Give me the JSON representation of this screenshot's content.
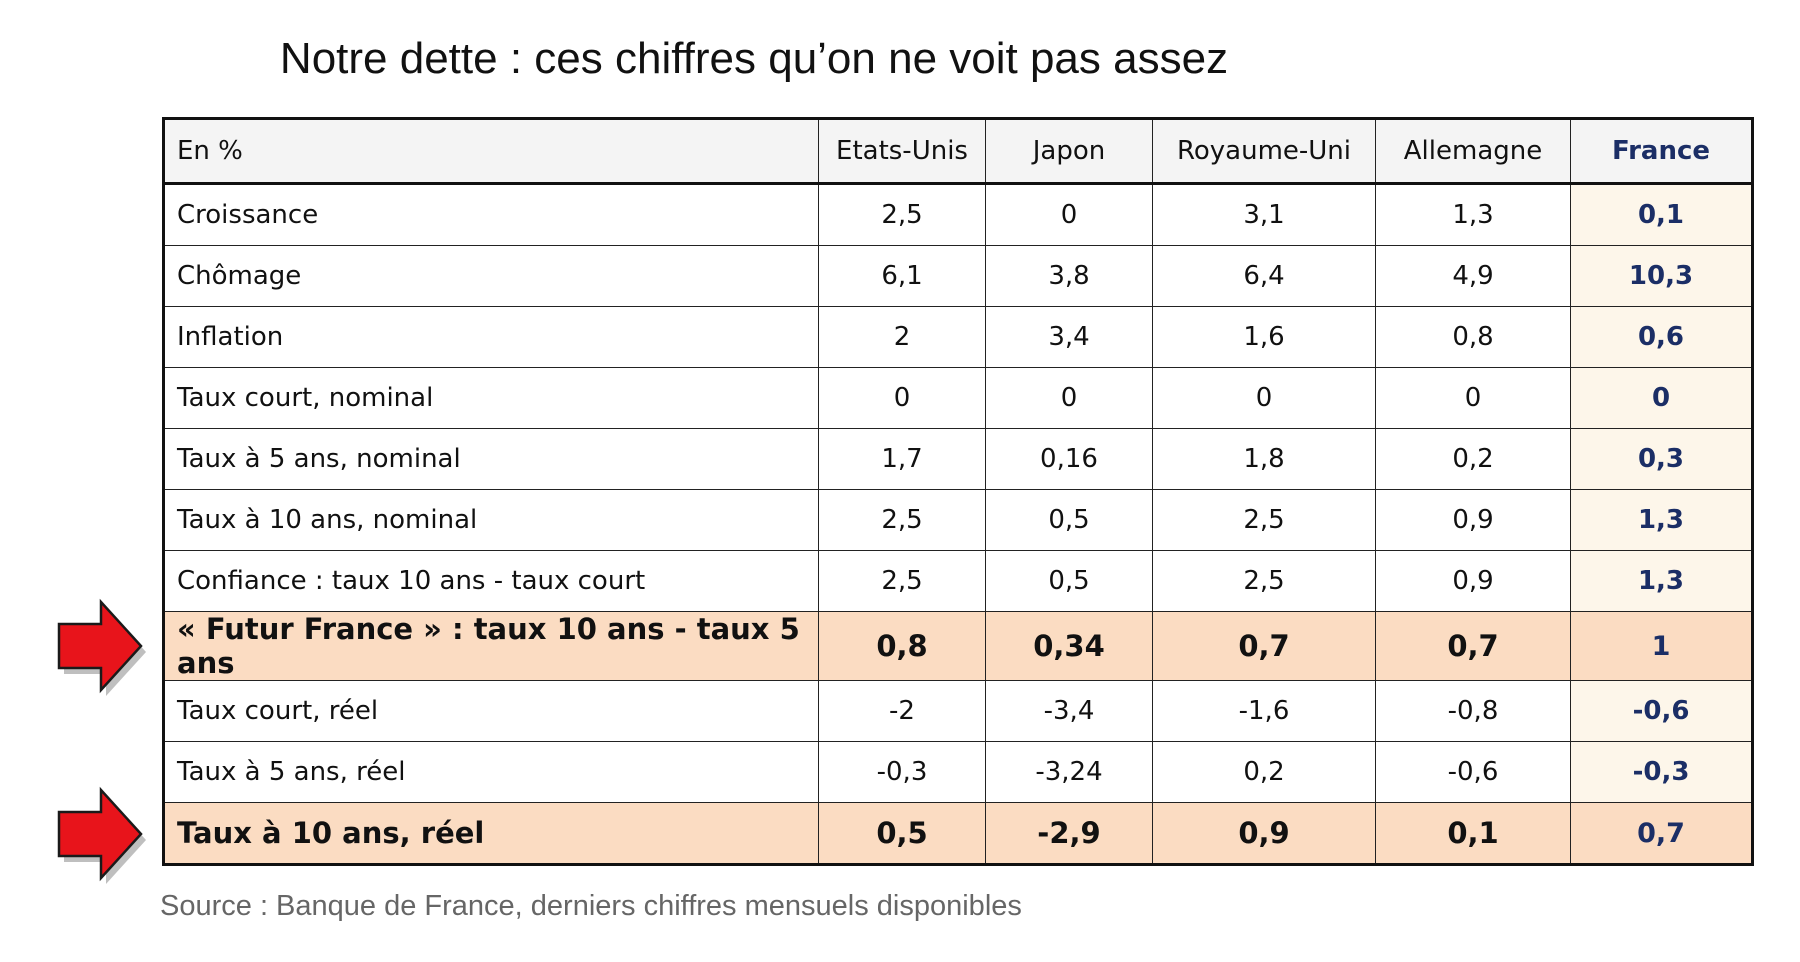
{
  "title": "Notre dette : ces chiffres qu’on ne voit pas assez",
  "source": "Source : Banque de France, derniers chiffres mensuels disponibles",
  "colors": {
    "france_text": "#1b2e66",
    "highlight_row": "#fbdcc2",
    "france_column": "#fdf6ea",
    "arrow": "#e8141b"
  },
  "chart_data": {
    "type": "table",
    "columns": [
      "En %",
      "Etats-Unis",
      "Japon",
      "Royaume-Uni",
      "Allemagne",
      "France"
    ],
    "rows": [
      {
        "label": "Croissance",
        "values": [
          "2,5",
          "0",
          "3,1",
          "1,3",
          "0,1"
        ],
        "highlight": false
      },
      {
        "label": "Chômage",
        "values": [
          "6,1",
          "3,8",
          "6,4",
          "4,9",
          "10,3"
        ],
        "highlight": false
      },
      {
        "label": "Inflation",
        "values": [
          "2",
          "3,4",
          "1,6",
          "0,8",
          "0,6"
        ],
        "highlight": false
      },
      {
        "label": "Taux court, nominal",
        "values": [
          "0",
          "0",
          "0",
          "0",
          "0"
        ],
        "highlight": false
      },
      {
        "label": "Taux à 5 ans, nominal",
        "values": [
          "1,7",
          "0,16",
          "1,8",
          "0,2",
          "0,3"
        ],
        "highlight": false
      },
      {
        "label": "Taux à 10 ans, nominal",
        "values": [
          "2,5",
          "0,5",
          "2,5",
          "0,9",
          "1,3"
        ],
        "highlight": false
      },
      {
        "label": "Confiance : taux 10 ans - taux court",
        "values": [
          "2,5",
          "0,5",
          "2,5",
          "0,9",
          "1,3"
        ],
        "highlight": false
      },
      {
        "label": "« Futur France » : taux 10 ans - taux 5 ans",
        "values": [
          "0,8",
          "0,34",
          "0,7",
          "0,7",
          "1"
        ],
        "highlight": true
      },
      {
        "label": "Taux court, réel",
        "values": [
          "-2",
          "-3,4",
          "-1,6",
          "-0,8",
          "-0,6"
        ],
        "highlight": false
      },
      {
        "label": "Taux à 5 ans, réel",
        "values": [
          "-0,3",
          "-3,24",
          "0,2",
          "-0,6",
          "-0,3"
        ],
        "highlight": false
      },
      {
        "label": "Taux à 10 ans, réel",
        "values": [
          "0,5",
          "-2,9",
          "0,9",
          "0,1",
          "0,7"
        ],
        "highlight": true
      }
    ]
  }
}
